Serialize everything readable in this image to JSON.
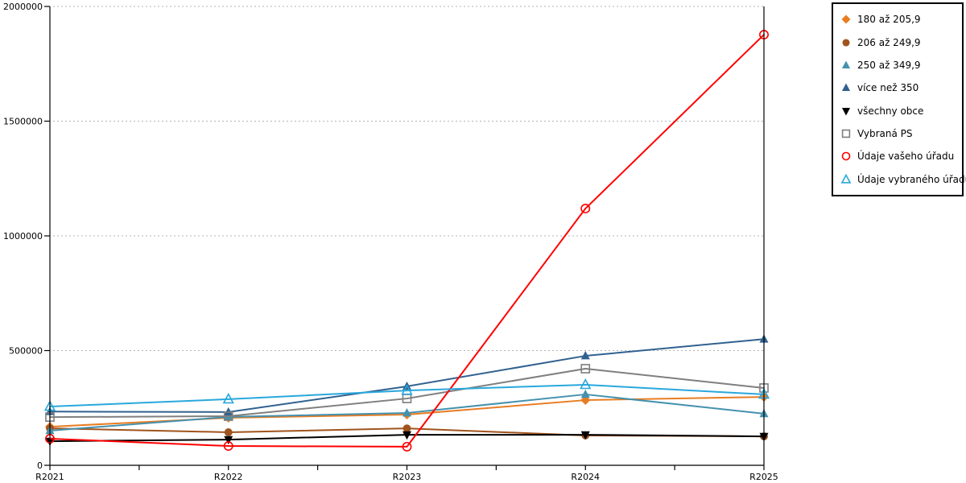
{
  "chart_data": {
    "type": "line",
    "title": "",
    "x_categories": [
      "R2021",
      "R2022",
      "R2023",
      "R2024",
      "R2025"
    ],
    "y_axis": {
      "min": 0,
      "max": 2000000,
      "tick_step": 500000,
      "tick_labels": [
        "0",
        "500000",
        "1000000",
        "1500000",
        "2000000"
      ]
    },
    "grid": {
      "style": "dotted-horizontal",
      "color": "#b3b3b3"
    },
    "axis_color": "#000000",
    "legend": {
      "position": "outside-top-right",
      "border_color": "#000000"
    },
    "series": [
      {
        "name": "180 až 205,9",
        "color": "#E87D22",
        "marker": "diamond",
        "marker_fill": "solid",
        "values": [
          168000,
          207000,
          221000,
          284000,
          298000
        ]
      },
      {
        "name": "206 až 249,9",
        "color": "#A0541D",
        "marker": "circle",
        "marker_fill": "solid",
        "values": [
          161000,
          144000,
          161000,
          130000,
          126000
        ]
      },
      {
        "name": "250 až 349,9",
        "color": "#4491AE",
        "marker": "triangle-up",
        "marker_fill": "solid",
        "values": [
          151000,
          211000,
          228000,
          309000,
          225000
        ]
      },
      {
        "name": "více než 350",
        "color": "#31618F",
        "marker": "triangle-up",
        "marker_fill": "solid",
        "values": [
          234000,
          232000,
          344000,
          477000,
          550000
        ]
      },
      {
        "name": "všechny obce",
        "color": "#000000",
        "marker": "triangle-down",
        "marker_fill": "solid",
        "values": [
          105000,
          112000,
          133000,
          133000,
          126000
        ]
      },
      {
        "name": "Vybraná PS",
        "color": "#7F7F7F",
        "marker": "square",
        "marker_fill": "open",
        "values": [
          210000,
          214000,
          291000,
          421000,
          337000
        ]
      },
      {
        "name": "Údaje vašeho úřadu",
        "color": "#FF0000",
        "marker": "circle",
        "marker_fill": "open",
        "values": [
          116000,
          84000,
          81000,
          1119000,
          1877000
        ]
      },
      {
        "name": "Údaje vybraného úřadu",
        "color": "#29A8DC",
        "marker": "triangle-up",
        "marker_fill": "open",
        "values": [
          256000,
          288000,
          326000,
          351000,
          309000
        ]
      }
    ]
  }
}
